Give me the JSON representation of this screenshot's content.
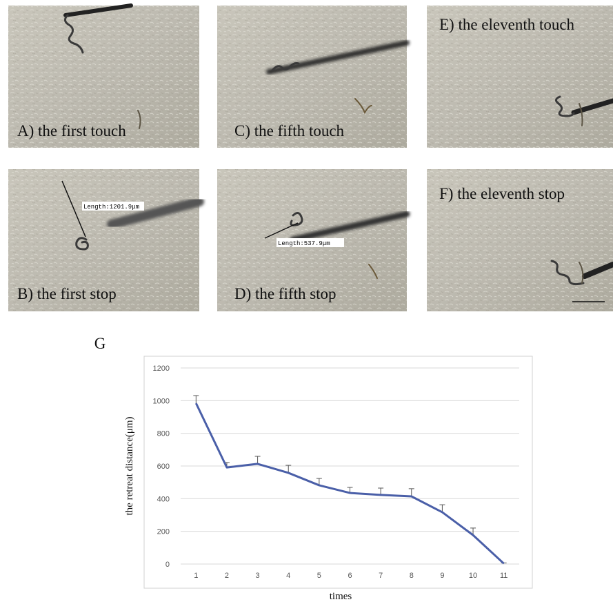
{
  "panels": [
    {
      "label": "A) the first touch"
    },
    {
      "label": "C) the fifth touch"
    },
    {
      "label": "E) the eleventh touch"
    },
    {
      "label": "B) the first stop",
      "measure": "Length:1201.9μm"
    },
    {
      "label": "D) the fifth stop",
      "measure": "Length:537.9μm"
    },
    {
      "label": "F) the eleventh stop"
    }
  ],
  "chart_data": {
    "type": "line",
    "title": "G",
    "x_label": "times",
    "y_label": "the retreat distance(μm)",
    "categories": [
      1,
      2,
      3,
      4,
      5,
      6,
      7,
      8,
      9,
      10,
      11
    ],
    "series": [
      {
        "color": "#4a5fa8",
        "values": [
          984,
          591,
          613,
          558,
          482,
          435,
          423,
          414,
          317,
          177,
          3
        ],
        "errors": [
          47,
          30,
          46,
          46,
          42,
          34,
          42,
          47,
          46,
          43,
          4
        ]
      }
    ],
    "ylim": [
      0,
      1200
    ],
    "yticks": [
      0,
      200,
      400,
      600,
      800,
      1000,
      1200
    ],
    "grid": true
  }
}
